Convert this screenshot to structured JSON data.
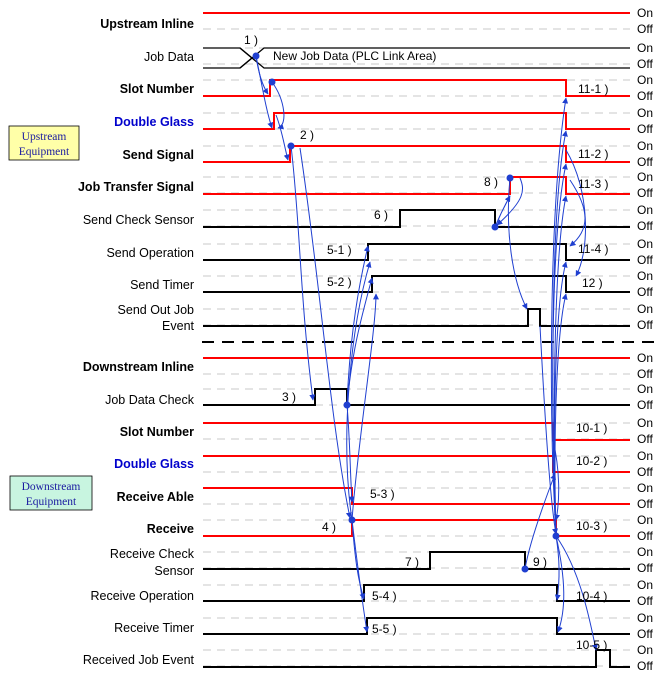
{
  "state_on": "On",
  "state_off": "Off",
  "colors": {
    "signal_red": "#ff0000",
    "signal_black": "#000000",
    "arrow_blue": "#1f3fd0",
    "upstream_box": "#ffffa8",
    "downstream_box": "#c8f5e0",
    "grid_dash": "#c8c8c8"
  },
  "upstream": {
    "box_line1": "Upstream",
    "box_line2": "Equipment",
    "signals": [
      {
        "label": "Upstream Inline",
        "style": "bold",
        "color": "red"
      },
      {
        "label": "Job Data",
        "style": "normal",
        "color": "black"
      },
      {
        "label": "Slot Number",
        "style": "bold",
        "color": "red"
      },
      {
        "label": "Double Glass",
        "style": "blue",
        "color": "red"
      },
      {
        "label": "Send Signal",
        "style": "bold",
        "color": "red"
      },
      {
        "label": "Job Transfer Signal",
        "style": "bold",
        "color": "red"
      },
      {
        "label": "Send Check Sensor",
        "style": "normal",
        "color": "black"
      },
      {
        "label": "Send Operation",
        "style": "normal",
        "color": "black"
      },
      {
        "label": "Send Timer",
        "style": "normal",
        "color": "black"
      },
      {
        "label": "Send Out Job",
        "label2": "Event",
        "style": "normal",
        "color": "black"
      }
    ],
    "job_data_text": "New Job Data (PLC Link Area)"
  },
  "downstream": {
    "box_line1": "Downstream",
    "box_line2": "Equipment",
    "signals": [
      {
        "label": "Downstream Inline",
        "style": "bold",
        "color": "red"
      },
      {
        "label": "Job Data Check",
        "style": "normal",
        "color": "black"
      },
      {
        "label": "Slot Number",
        "style": "bold",
        "color": "red"
      },
      {
        "label": "Double Glass",
        "style": "blue",
        "color": "red"
      },
      {
        "label": "Receive Able",
        "style": "bold",
        "color": "red"
      },
      {
        "label": "Receive",
        "style": "bold",
        "color": "red"
      },
      {
        "label": "Receive Check",
        "label2": "Sensor",
        "style": "normal",
        "color": "black"
      },
      {
        "label": "Receive Operation",
        "style": "normal",
        "color": "black"
      },
      {
        "label": "Receive Timer",
        "style": "normal",
        "color": "black"
      },
      {
        "label": "Received Job Event",
        "style": "normal",
        "color": "black"
      }
    ]
  },
  "step_labels": {
    "s1": "1 )",
    "s2": "2 )",
    "s3": "3 )",
    "s4": "4 )",
    "s5_1": "5-1 )",
    "s5_2": "5-2 )",
    "s5_3": "5-3 )",
    "s5_4": "5-4 )",
    "s5_5": "5-5 )",
    "s6": "6 )",
    "s7": "7 )",
    "s8": "8 )",
    "s9": "9 )",
    "s10_1": "10-1 )",
    "s10_2": "10-2 )",
    "s10_3": "10-3 )",
    "s10_4": "10-4 )",
    "s10_5": "10-5 )",
    "s11_1": "11-1 )",
    "s11_2": "11-2 )",
    "s11_3": "11-3 )",
    "s11_4": "11-4 )",
    "s12": "12 )"
  }
}
